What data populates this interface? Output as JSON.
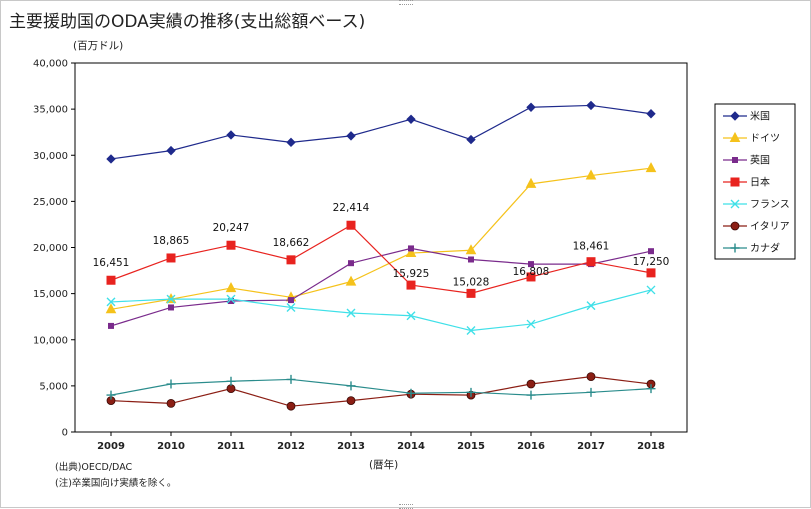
{
  "page": {
    "title": "主要援助国のODA実績の推移(支出総額ベース)"
  },
  "chart_data": {
    "type": "line",
    "title": "主要援助国のODA実績の推移(支出総額ベース)",
    "ylabel": "(百万ドル)",
    "xlabel": "(暦年)",
    "ylim": [
      0,
      40000
    ],
    "yticks": [
      0,
      5000,
      10000,
      15000,
      20000,
      25000,
      30000,
      35000,
      40000
    ],
    "ytick_labels": [
      "0",
      "5,000",
      "10,000",
      "15,000",
      "20,000",
      "25,000",
      "30,000",
      "35,000",
      "40,000"
    ],
    "x": [
      "2009",
      "2010",
      "2011",
      "2012",
      "2013",
      "2014",
      "2015",
      "2016",
      "2017",
      "2018"
    ],
    "grid": false,
    "legend_position": "right",
    "series": [
      {
        "name": "米国",
        "color": "#1f2a8c",
        "marker": "diamond",
        "values": [
          29600,
          30500,
          32200,
          31400,
          32100,
          33900,
          31700,
          35200,
          35400,
          34500
        ]
      },
      {
        "name": "ドイツ",
        "color": "#f5c21b",
        "marker": "triangle",
        "values": [
          13300,
          14400,
          15600,
          14600,
          16300,
          19400,
          19700,
          26900,
          27800,
          28600
        ]
      },
      {
        "name": "英国",
        "color": "#7a2b8c",
        "marker": "square-small",
        "values": [
          11500,
          13500,
          14200,
          14300,
          18300,
          19900,
          18700,
          18200,
          18200,
          19600
        ]
      },
      {
        "name": "日本",
        "color": "#e8231f",
        "marker": "square",
        "values": [
          16451,
          18865,
          20247,
          18662,
          22414,
          15925,
          15028,
          16808,
          18461,
          17250
        ]
      },
      {
        "name": "フランス",
        "color": "#3fe0e8",
        "marker": "x",
        "values": [
          14100,
          14400,
          14400,
          13500,
          12900,
          12600,
          11000,
          11700,
          13700,
          15400
        ]
      },
      {
        "name": "イタリア",
        "color": "#8b1e14",
        "marker": "circle",
        "values": [
          3400,
          3100,
          4700,
          2800,
          3400,
          4100,
          4000,
          5200,
          6000,
          5200
        ]
      },
      {
        "name": "カナダ",
        "color": "#2a8c8c",
        "marker": "plus",
        "values": [
          4000,
          5200,
          5500,
          5700,
          5000,
          4200,
          4300,
          4000,
          4300,
          4700
        ]
      }
    ],
    "annotations": [
      "16,451",
      "18,865",
      "20,247",
      "18,662",
      "22,414",
      "15,925",
      "15,028",
      "16,808",
      "18,461",
      "17,250"
    ],
    "annotation_series": "日本"
  },
  "notes": {
    "source": "(出典)OECD/DAC",
    "note": "(注)卒業国向け実績を除く。"
  }
}
